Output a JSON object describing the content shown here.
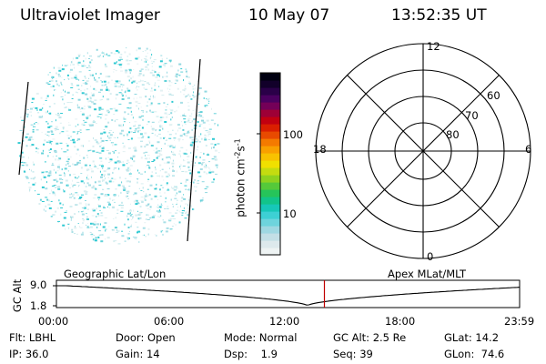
{
  "header": {
    "instrument": "Ultraviolet Imager",
    "date": "10 May 07",
    "time": "13:52:35 UT"
  },
  "colorbar": {
    "label_main": "photon cm",
    "label_exp1": "-2",
    "label_mid": "s",
    "label_exp2": "-1",
    "ticks": [
      "100",
      "10"
    ],
    "colors": [
      "#eef3f3",
      "#dde9ec",
      "#c3dfe6",
      "#9fd8e2",
      "#6ed4dd",
      "#3dd0d4",
      "#17c7b8",
      "#12c48a",
      "#26c45a",
      "#55c93a",
      "#8fd21f",
      "#c5dc10",
      "#f0e000",
      "#f8c200",
      "#f9a000",
      "#f47a00",
      "#e84a00",
      "#da1f00",
      "#c20010",
      "#9e0036",
      "#740058",
      "#4a0060",
      "#2a0048",
      "#12002a",
      "#000010"
    ]
  },
  "polar": {
    "mlt_labels": {
      "top": "12",
      "left": "18",
      "right": "6",
      "bottom": "0"
    },
    "lat_labels": [
      "60",
      "70",
      "80"
    ]
  },
  "timeline": {
    "left_title": "Geographic Lat/Lon",
    "right_title": "Apex MLat/MLT",
    "axis_label": "GC Alt",
    "y_ticks": [
      "9.0",
      "1.8"
    ],
    "x_ticks": [
      "00:00",
      "06:00",
      "12:00",
      "18:00",
      "23:59"
    ],
    "current_time_hours": 13.876
  },
  "status": {
    "row1": [
      {
        "name": "filter",
        "text": "Flt: LBHL"
      },
      {
        "name": "door",
        "text": "Door: Open"
      },
      {
        "name": "mode",
        "text": "Mode: Normal"
      },
      {
        "name": "gc-alt",
        "text": "GC Alt: 2.5 Re"
      },
      {
        "name": "glat",
        "text": "GLat: 14.2"
      }
    ],
    "row2": [
      {
        "name": "ip",
        "text": "IP: 36.0"
      },
      {
        "name": "gain",
        "text": "Gain: 14"
      },
      {
        "name": "dsp",
        "text": "Dsp:    1.9"
      },
      {
        "name": "seq",
        "text": "Seq: 39"
      },
      {
        "name": "glon",
        "text": "GLon:  74.6"
      }
    ]
  }
}
